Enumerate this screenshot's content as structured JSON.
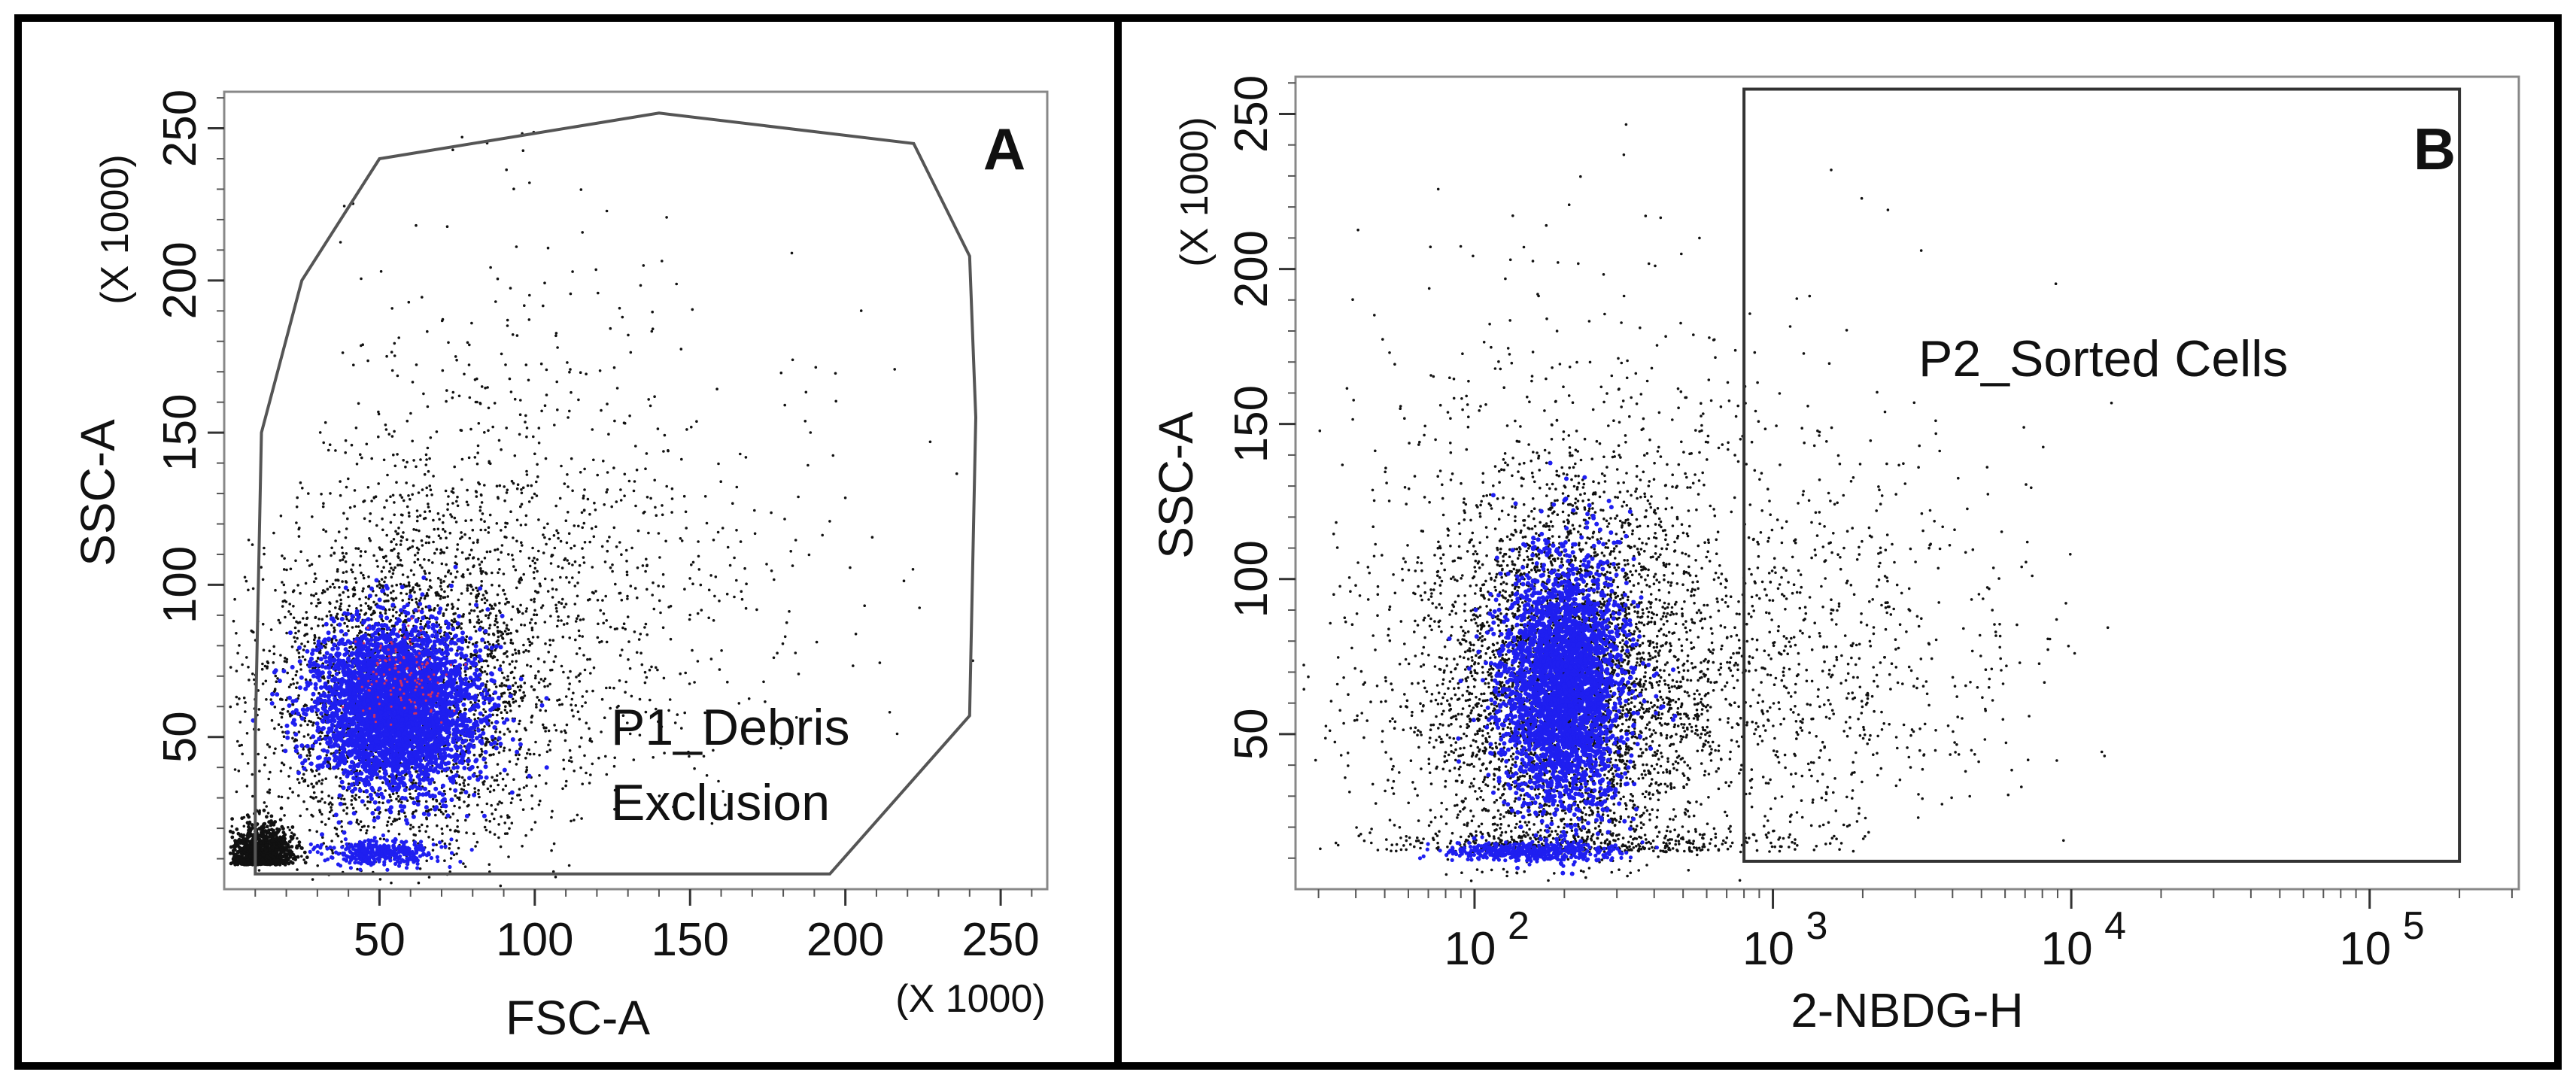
{
  "chart_data": [
    {
      "panel": "A",
      "type": "scatter",
      "x_axis": {
        "label": "FSC-A",
        "multiplier": "(X 1000)",
        "range": [
          0,
          265
        ],
        "ticks": [
          50,
          100,
          150,
          200,
          250
        ],
        "scale": "linear"
      },
      "y_axis": {
        "label": "SSC-A",
        "multiplier": "(X 1000)",
        "range": [
          0,
          262
        ],
        "ticks": [
          50,
          100,
          150,
          200,
          250
        ],
        "scale": "linear"
      },
      "gates": [
        {
          "name": "P1_Debris Exclusion",
          "label_lines": [
            "P1_Debris",
            "Exclusion"
          ],
          "polygon": [
            [
              10,
              50
            ],
            [
              12,
              150
            ],
            [
              25,
              200
            ],
            [
              50,
              240
            ],
            [
              140,
              255
            ],
            [
              222,
              245
            ],
            [
              240,
              208
            ],
            [
              242,
              155
            ],
            [
              240,
              57
            ],
            [
              195,
              5
            ],
            [
              10,
              5
            ]
          ]
        }
      ],
      "populations": [
        {
          "name": "main",
          "center": [
            55,
            60
          ],
          "spread": [
            14,
            14
          ],
          "color": "#1f1ff0"
        },
        {
          "name": "debris",
          "center": [
            12,
            8
          ],
          "spread": [
            6,
            5
          ],
          "color": "#111111"
        },
        {
          "name": "low-ssc",
          "center": [
            50,
            12
          ],
          "spread": [
            9,
            2
          ],
          "color": "#1f1ff0"
        }
      ],
      "colors": {
        "points": "#111111",
        "dense": "#1f1ff0",
        "core": "#d03060",
        "gate": "#555555"
      }
    },
    {
      "panel": "B",
      "type": "scatter",
      "x_axis": {
        "label": "2-NBDG-H",
        "range_log10": [
          1.4,
          5.5
        ],
        "ticks": [
          {
            "exp": 2,
            "base": "10",
            "sup": "2"
          },
          {
            "exp": 3,
            "base": "10",
            "sup": "3"
          },
          {
            "exp": 4,
            "base": "10",
            "sup": "4"
          },
          {
            "exp": 5,
            "base": "10",
            "sup": "5"
          }
        ],
        "scale": "log"
      },
      "y_axis": {
        "label": "SSC-A",
        "multiplier": "(X 1000)",
        "range": [
          0,
          262
        ],
        "ticks": [
          50,
          100,
          150,
          200,
          250
        ],
        "scale": "linear"
      },
      "gates": [
        {
          "name": "P2_Sorted Cells",
          "label_lines": [
            "P2_Sorted Cells"
          ],
          "x_range": [
            800,
            200000
          ],
          "y_range": [
            9,
            258
          ]
        }
      ],
      "populations": [
        {
          "name": "main",
          "center_log": [
            2.3,
            65
          ],
          "spread": [
            0.11,
            22
          ],
          "color": "#1f1ff0"
        },
        {
          "name": "low-ssc",
          "center_log": [
            2.2,
            12
          ],
          "spread": [
            0.15,
            1.5
          ],
          "color": "#1f1ff0"
        }
      ],
      "colors": {
        "points": "#111111",
        "dense": "#1f1ff0",
        "gate": "#333333"
      }
    }
  ]
}
